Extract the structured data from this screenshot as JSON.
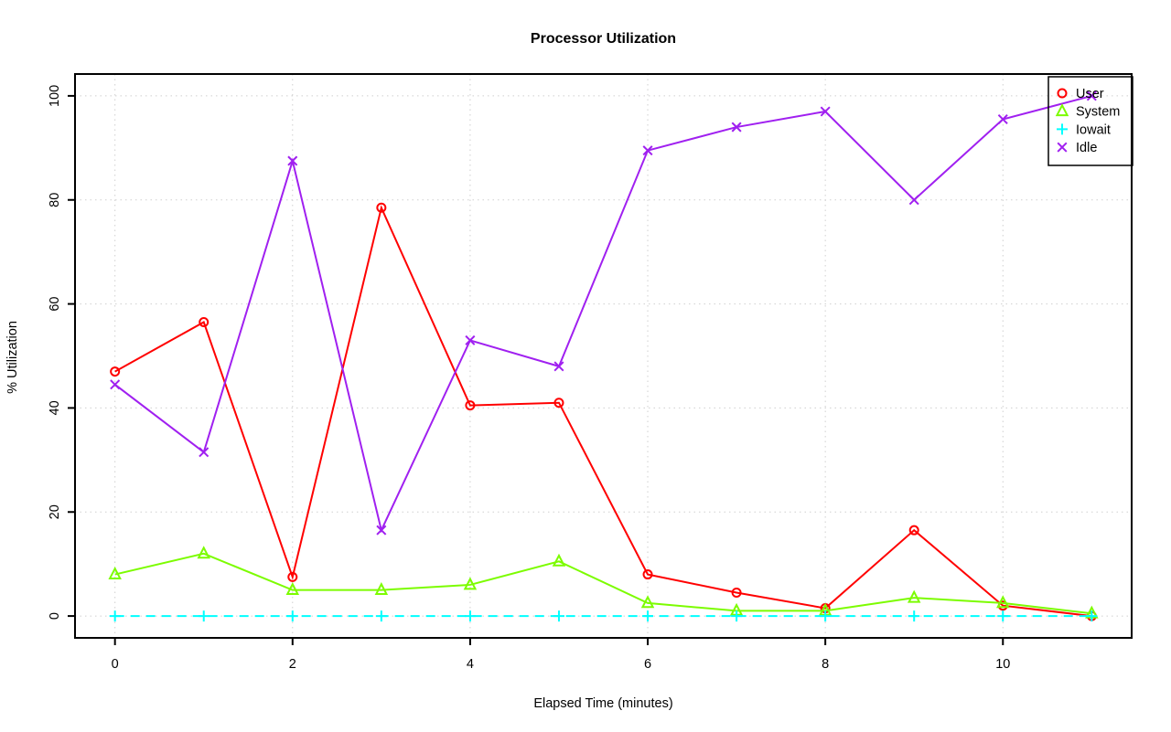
{
  "figure": {
    "background": "#FFFFFF",
    "grid_color": "#CFCFCF",
    "axis_color": "#000000",
    "tick_label_color": "#000000"
  },
  "chart_data": {
    "type": "line",
    "title": "Processor Utilization",
    "xlabel": "Elapsed Time (minutes)",
    "ylabel": "% Utilization",
    "x": [
      0,
      1,
      2,
      3,
      4,
      5,
      6,
      7,
      8,
      9,
      10,
      11
    ],
    "x_ticks": [
      0,
      2,
      4,
      6,
      8,
      10
    ],
    "y_ticks": [
      0,
      20,
      40,
      60,
      80,
      100
    ],
    "xlim": [
      -0.45,
      11.45
    ],
    "ylim": [
      -4.2,
      104.2
    ],
    "grid": true,
    "legend_position": "top-right",
    "series": [
      {
        "name": "User",
        "color": "#FF0000",
        "marker": "circle",
        "dash": "solid",
        "values": [
          47,
          56.5,
          7.5,
          78.5,
          40.5,
          41,
          8,
          4.5,
          1.5,
          16.5,
          2,
          0
        ]
      },
      {
        "name": "System",
        "color": "#7CFC00",
        "marker": "triangle",
        "dash": "solid",
        "values": [
          8,
          12,
          5,
          5,
          6,
          10.5,
          2.5,
          1,
          1,
          3.5,
          2.5,
          0.5
        ]
      },
      {
        "name": "Iowait",
        "color": "#00FFFF",
        "marker": "plus",
        "dash": "dashed",
        "values": [
          0,
          0,
          0,
          0,
          0,
          0,
          0,
          0,
          0,
          0,
          0,
          0
        ]
      },
      {
        "name": "Idle",
        "color": "#A020F0",
        "marker": "x",
        "dash": "solid",
        "values": [
          44.5,
          31.5,
          87.5,
          16.5,
          53,
          48,
          89.5,
          94,
          97,
          80,
          95.5,
          100
        ]
      }
    ]
  }
}
